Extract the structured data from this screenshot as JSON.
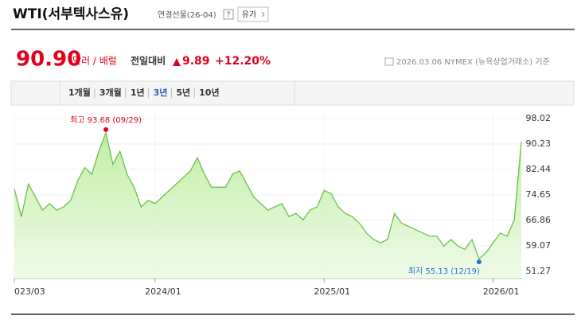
{
  "header": {
    "title": "WTI(서부텍사스유)",
    "subtitle": "연결선물(26-04)",
    "help": "?",
    "button": "유가",
    "price": "90.90",
    "unit": "달러 / 배럴",
    "change_label": "전일대비",
    "change": "9.89",
    "change_pct": "+12.20%",
    "source": "2026.03.06 NYMEX (뉴욕상업거래소) 기준"
  },
  "tabs": [
    "1개월",
    "3개월",
    "1년",
    "3년",
    "5년",
    "10년"
  ],
  "selected_tab": "3년",
  "chart_data": {
    "type": "area",
    "color": "#6dbf4b",
    "categories": [
      "023/03",
      null,
      null,
      null,
      null,
      null,
      null,
      null,
      null,
      null,
      null,
      null,
      null,
      null,
      null,
      null,
      null,
      null,
      null,
      null,
      "2024/01",
      null,
      null,
      null,
      null,
      null,
      null,
      null,
      null,
      null,
      null,
      null,
      null,
      null,
      null,
      null,
      null,
      null,
      null,
      null,
      null,
      null,
      null,
      null,
      "2025/01",
      null,
      null,
      null,
      null,
      null,
      null,
      null,
      null,
      null,
      null,
      null,
      null,
      null,
      null,
      null,
      null,
      null,
      null,
      null,
      null,
      null,
      null,
      null,
      "2026/01",
      null,
      null,
      null,
      null
    ],
    "values": [
      76.5,
      68,
      78,
      74,
      70,
      72,
      70,
      71,
      73,
      79,
      83,
      81,
      88,
      93.68,
      84,
      88,
      81,
      77,
      71,
      73,
      72,
      74,
      76,
      78,
      80,
      82,
      86,
      81,
      77,
      77,
      77,
      81,
      82,
      78,
      74,
      72,
      70,
      71,
      72,
      68,
      69,
      67,
      70,
      71,
      76,
      75,
      71,
      69,
      68,
      66,
      63,
      61,
      60,
      61,
      69,
      66,
      65,
      64,
      63,
      62,
      62,
      59,
      61,
      59,
      58,
      61,
      55.13,
      57,
      60,
      63,
      62,
      67,
      90.9
    ],
    "ylim": [
      49.08,
      100.21
    ],
    "yticks": [
      98.02,
      90.23,
      82.44,
      74.65,
      66.86,
      59.07,
      51.27
    ],
    "annotations": [
      "최고 93.68 (09/29)",
      "최저 55.13 (12/19)"
    ]
  }
}
